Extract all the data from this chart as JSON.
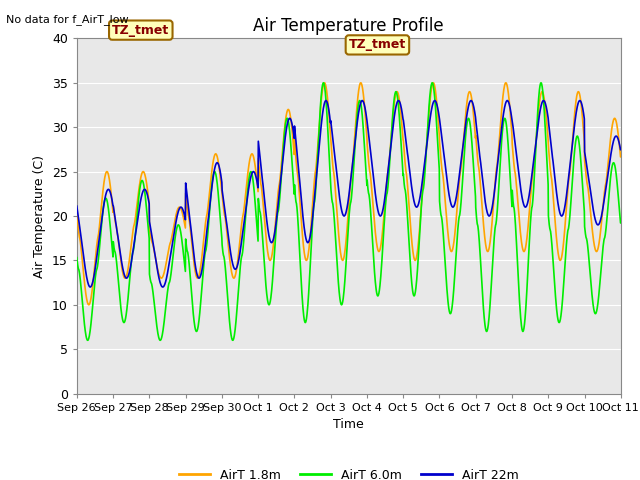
{
  "title": "Air Temperature Profile",
  "no_data_text": "No data for f_AirT_low",
  "annotation_text": "TZ_tmet",
  "xlabel": "Time",
  "ylabel": "Air Temperature (C)",
  "ylim": [
    0,
    40
  ],
  "yticks": [
    0,
    5,
    10,
    15,
    20,
    25,
    30,
    35,
    40
  ],
  "legend_labels": [
    "AirT 1.8m",
    "AirT 6.0m",
    "AirT 22m"
  ],
  "colors": {
    "orange": "#FFA500",
    "green": "#00EE00",
    "blue": "#0000CC",
    "bg": "#E8E8E8",
    "grid": "#FFFFFF",
    "annotation_bg": "#FFFFBB",
    "annotation_border": "#996600",
    "annotation_text": "#880000"
  },
  "x_tick_labels": [
    "Sep 26",
    "Sep 27",
    "Sep 28",
    "Sep 29",
    "Sep 30",
    "Oct 1",
    "Oct 2",
    "Oct 3",
    "Oct 4",
    "Oct 5",
    "Oct 6",
    "Oct 7",
    "Oct 8",
    "Oct 9",
    "Oct 10",
    "Oct 11"
  ],
  "x_tick_positions": [
    0,
    1,
    2,
    3,
    4,
    5,
    6,
    7,
    8,
    9,
    10,
    11,
    12,
    13,
    14,
    15
  ]
}
